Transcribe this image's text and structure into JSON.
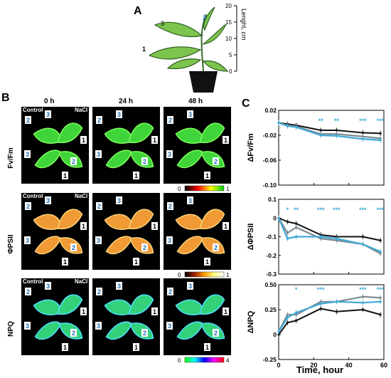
{
  "panel_a": {
    "letter": "A",
    "leaf_labels": [
      "1",
      "2",
      "3"
    ],
    "scale_ticks": [
      "20",
      "15",
      "10",
      "5",
      "0"
    ],
    "scale_label": "Lenght, cm"
  },
  "panel_b": {
    "letter": "B",
    "time_headers": [
      "0 h",
      "24 h",
      "48 h"
    ],
    "row_labels": [
      "Fv/Fm",
      "ΦPSII",
      "NPQ"
    ],
    "control_label": "Control",
    "nacl_label": "NaCl",
    "colorbars": [
      {
        "min": "0",
        "max": "1",
        "gradient": [
          "#000000",
          "#ff0000",
          "#ffff00",
          "#00cc00"
        ]
      },
      {
        "min": "0",
        "max": "1",
        "gradient": [
          "#000000",
          "#a02000",
          "#ff9a00",
          "#ffff80",
          "#ffffff"
        ]
      },
      {
        "min": "0",
        "max": "4",
        "gradient": [
          "#00ff00",
          "#00ffff",
          "#0000ff",
          "#ff00ff",
          "#ff0000"
        ]
      }
    ],
    "leaf_numbers": [
      "1",
      "2",
      "3"
    ],
    "row_colors": [
      {
        "fill": "#3fd43a",
        "edge": "#7dff5a"
      },
      {
        "fill": "#ef9a35",
        "edge": "#ffd27a"
      },
      {
        "fill": "#33d27a",
        "edge": "#4fe0ff"
      }
    ]
  },
  "panel_c": {
    "letter": "C",
    "xlabel": "Time, hour",
    "colors": {
      "black": "#111111",
      "grey": "#7a8a90",
      "blue": "#3fa9d6"
    }
  },
  "chart_data": [
    {
      "type": "line",
      "ylabel": "ΔFv/Fm",
      "ylim": [
        -0.1,
        0.02
      ],
      "yticks": [
        "0.02",
        "-0.02",
        "-0.06",
        "-0.10"
      ],
      "xlim": [
        0,
        60
      ],
      "x": [
        0,
        5,
        10,
        24,
        33,
        48,
        58
      ],
      "series": [
        {
          "values": [
            0.0,
            -0.002,
            -0.004,
            -0.012,
            -0.012,
            -0.016,
            -0.017
          ],
          "color": "#111111"
        },
        {
          "values": [
            0.0,
            -0.004,
            -0.006,
            -0.018,
            -0.018,
            -0.022,
            -0.025
          ],
          "color": "#7a8a90"
        },
        {
          "values": [
            0.0,
            -0.005,
            -0.007,
            -0.02,
            -0.021,
            -0.026,
            -0.028
          ],
          "color": "#3fa9d6"
        }
      ],
      "annotations": [
        {
          "x": 24,
          "text": "**"
        },
        {
          "x": 33,
          "text": "**"
        },
        {
          "x": 48,
          "text": "***"
        },
        {
          "x": 58,
          "text": "***"
        }
      ]
    },
    {
      "type": "line",
      "ylabel": "ΔΦPSII",
      "ylim": [
        -0.3,
        0.1
      ],
      "yticks": [
        "0.1",
        "0",
        "-0.1",
        "-0.2",
        "-0.3"
      ],
      "xlim": [
        0,
        60
      ],
      "x": [
        0,
        5,
        10,
        24,
        33,
        48,
        58
      ],
      "series": [
        {
          "values": [
            0.0,
            -0.02,
            -0.03,
            -0.09,
            -0.1,
            -0.1,
            -0.12
          ],
          "color": "#111111"
        },
        {
          "values": [
            0.0,
            -0.08,
            -0.05,
            -0.11,
            -0.12,
            -0.14,
            -0.19
          ],
          "color": "#7a8a90"
        },
        {
          "values": [
            0.0,
            -0.11,
            -0.1,
            -0.1,
            -0.11,
            -0.14,
            -0.18
          ],
          "color": "#3fa9d6"
        }
      ],
      "annotations": [
        {
          "x": 5,
          "text": "*"
        },
        {
          "x": 10,
          "text": "**"
        },
        {
          "x": 24,
          "text": "***"
        },
        {
          "x": 33,
          "text": "***"
        },
        {
          "x": 48,
          "text": "***"
        },
        {
          "x": 58,
          "text": "***"
        }
      ]
    },
    {
      "type": "line",
      "ylabel": "ΔNPQ",
      "ylim": [
        -0.25,
        0.5
      ],
      "yticks": [
        "0.50",
        "0.25",
        "0",
        "-0.25"
      ],
      "xlim": [
        0,
        60
      ],
      "xticks": [
        "0",
        "20",
        "40",
        "60"
      ],
      "x": [
        0,
        5,
        10,
        24,
        33,
        48,
        58
      ],
      "series": [
        {
          "values": [
            0.0,
            0.12,
            0.14,
            0.26,
            0.23,
            0.25,
            0.2
          ],
          "color": "#111111"
        },
        {
          "values": [
            0.03,
            0.2,
            0.2,
            0.33,
            0.33,
            0.38,
            0.37
          ],
          "color": "#7a8a90"
        },
        {
          "values": [
            0.03,
            0.17,
            0.22,
            0.31,
            0.33,
            0.32,
            0.33
          ],
          "color": "#3fa9d6"
        }
      ],
      "annotations": [
        {
          "x": 10,
          "text": "*"
        },
        {
          "x": 24,
          "text": "***"
        },
        {
          "x": 48,
          "text": "***"
        },
        {
          "x": 58,
          "text": "***"
        }
      ]
    }
  ]
}
